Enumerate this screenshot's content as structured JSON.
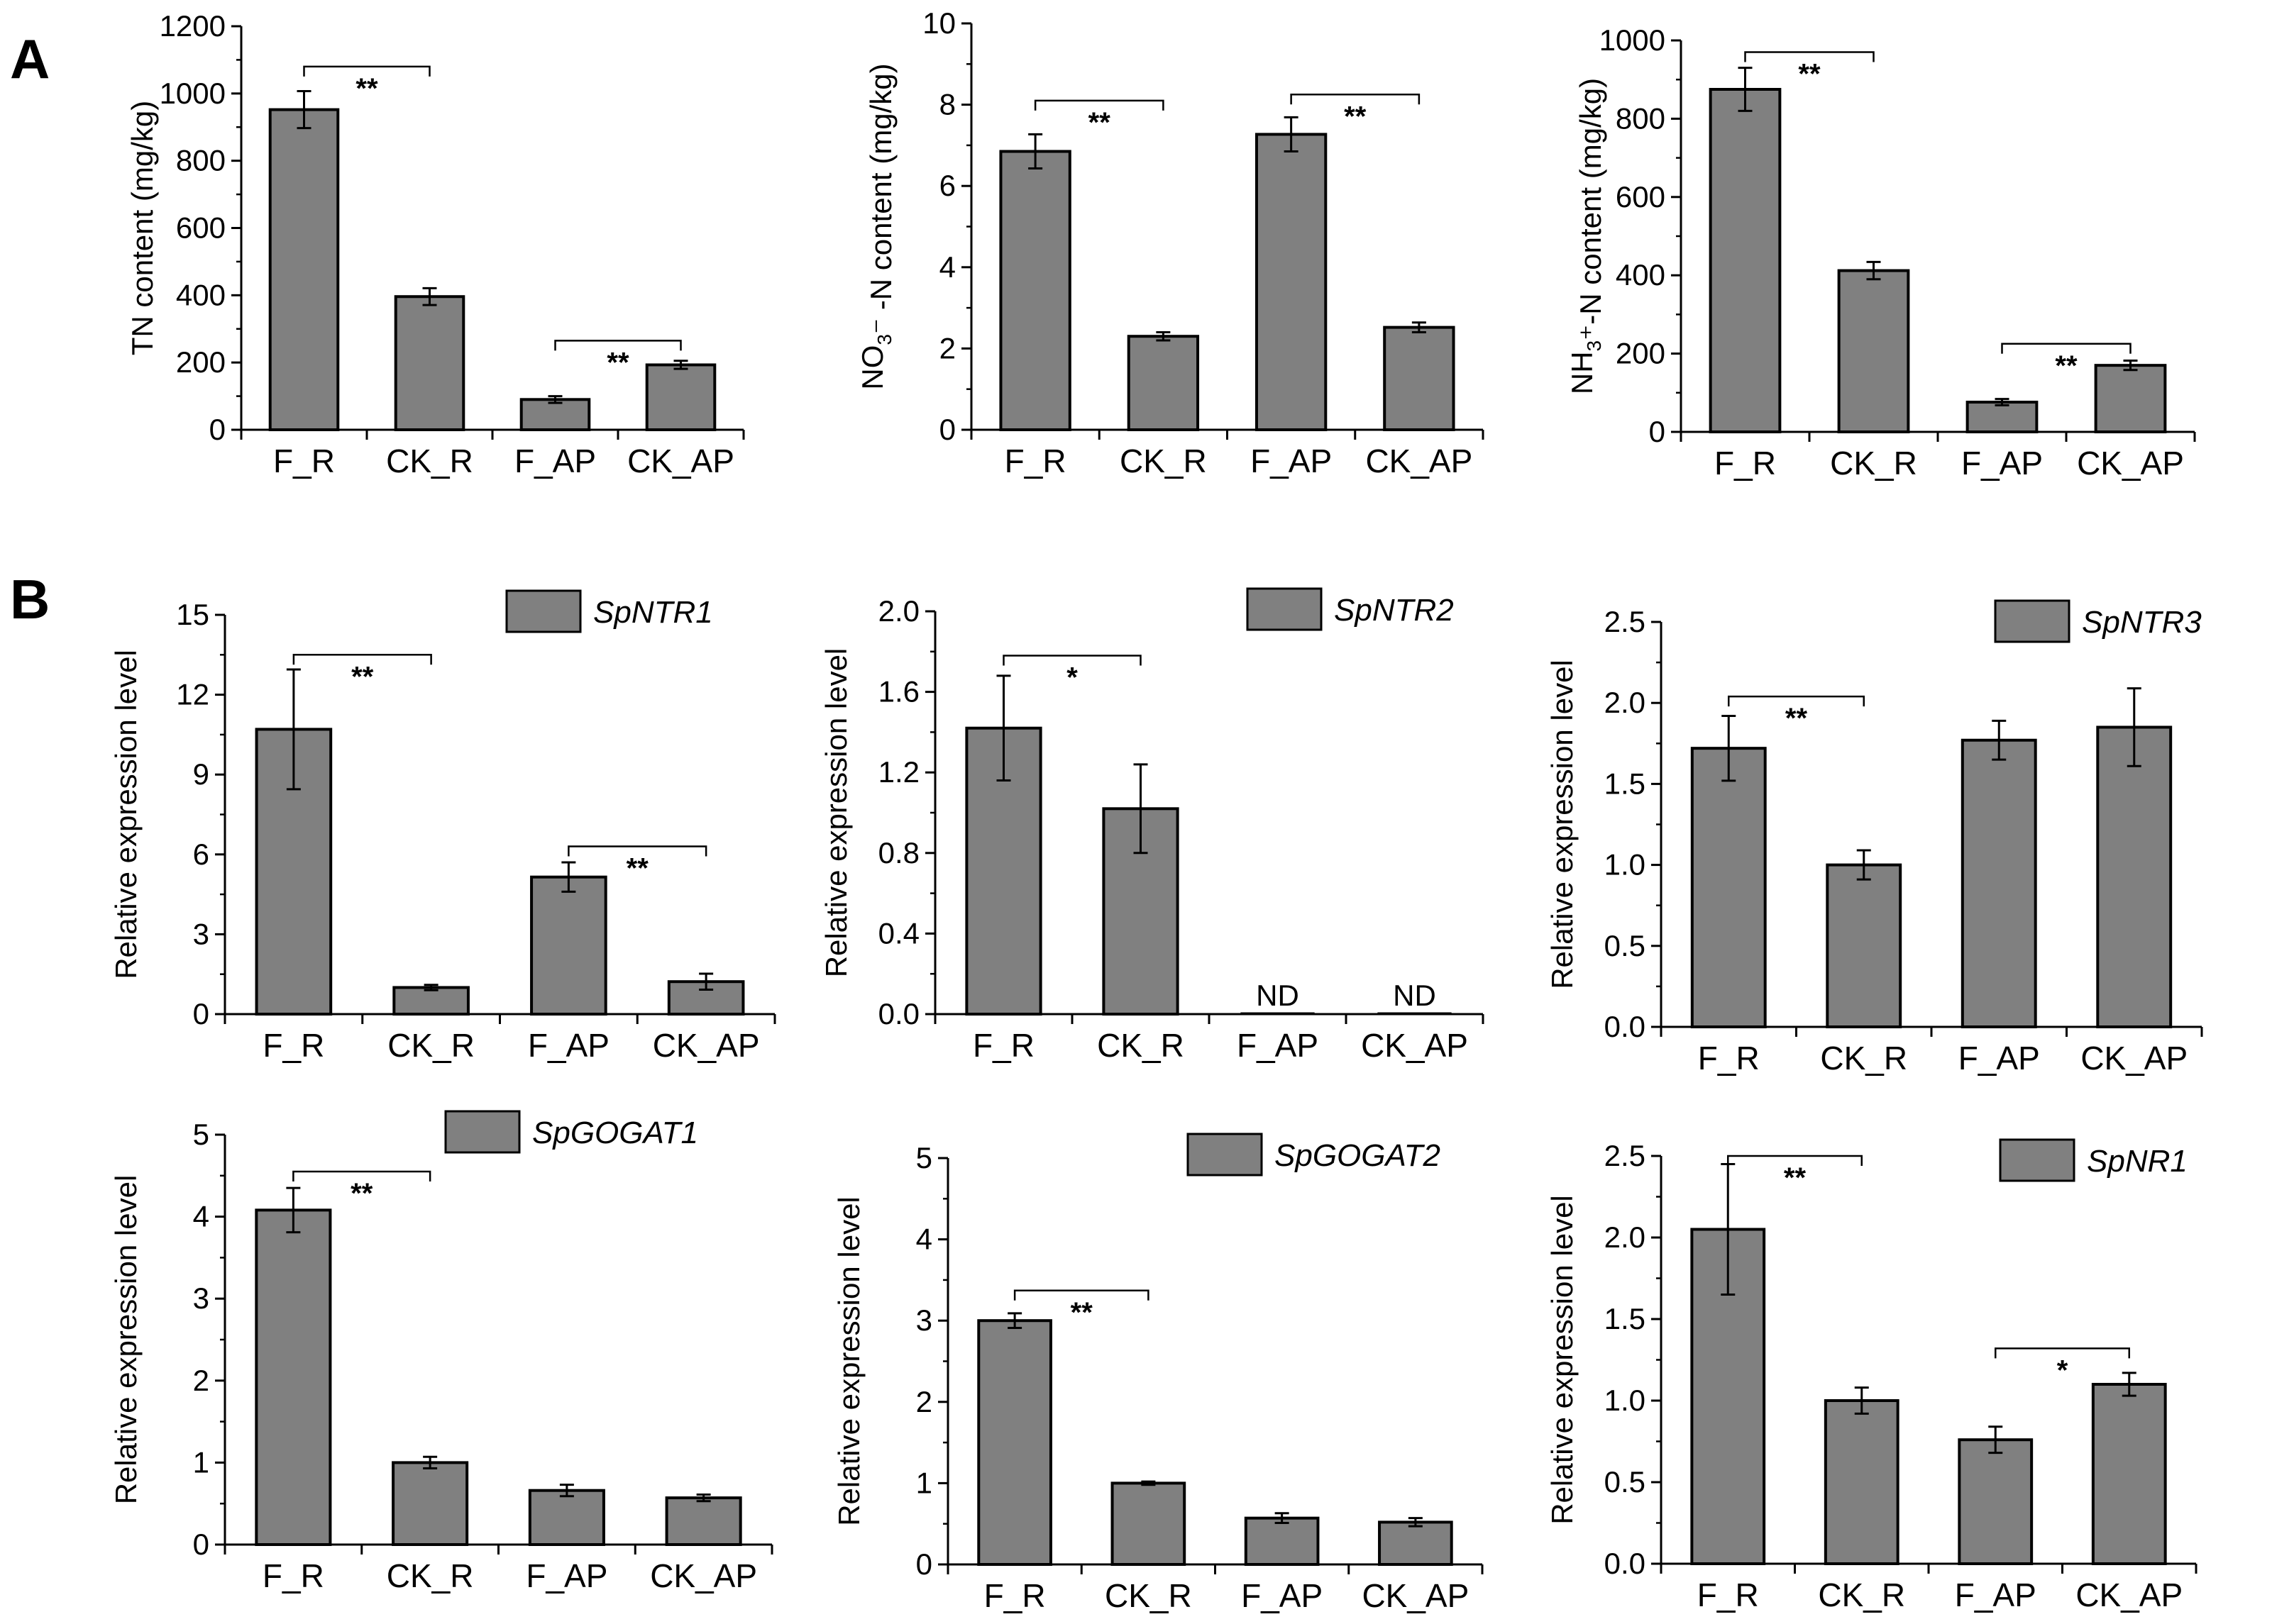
{
  "panel_labels": [
    "A",
    "B"
  ],
  "colors": {
    "bar": "#808080",
    "outline": "#000000"
  },
  "chart_data": [
    {
      "type": "bar",
      "panel": "A",
      "title": "",
      "ylabel": {
        "parts": [
          {
            "t": "TN content (mg/kg)"
          }
        ]
      },
      "categories": [
        "F_R",
        "CK_R",
        "F_AP",
        "CK_AP"
      ],
      "values": [
        952,
        396,
        90,
        193
      ],
      "errors": [
        55,
        25,
        10,
        12
      ],
      "ylim": [
        0,
        1200
      ],
      "yticks": [
        "0",
        "200",
        "400",
        "600",
        "800",
        "1000",
        "1200"
      ],
      "legend": "",
      "significance": [
        {
          "from": 0,
          "to": 1,
          "label": "**",
          "y": 1080
        },
        {
          "from": 2,
          "to": 3,
          "label": "**",
          "y": 265
        }
      ],
      "nd": []
    },
    {
      "type": "bar",
      "panel": "A",
      "title": "",
      "ylabel": {
        "parts": [
          {
            "t": "NO"
          },
          {
            "t": "3",
            "sub": true
          },
          {
            "t": "⁻ -N content (mg/kg)"
          }
        ]
      },
      "categories": [
        "F_R",
        "CK_R",
        "F_AP",
        "CK_AP"
      ],
      "values": [
        6.85,
        2.3,
        7.27,
        2.52
      ],
      "errors": [
        0.42,
        0.1,
        0.42,
        0.12
      ],
      "ylim": [
        0,
        10
      ],
      "yticks": [
        "0",
        "2",
        "4",
        "6",
        "8",
        "10"
      ],
      "legend": "",
      "significance": [
        {
          "from": 0,
          "to": 1,
          "label": "**",
          "y": 8.1
        },
        {
          "from": 2,
          "to": 3,
          "label": "**",
          "y": 8.25
        }
      ],
      "nd": []
    },
    {
      "type": "bar",
      "panel": "A",
      "title": "",
      "ylabel": {
        "parts": [
          {
            "t": "NH"
          },
          {
            "t": "3",
            "sub": true
          },
          {
            "t": "⁺-N content (mg/kg)"
          }
        ]
      },
      "categories": [
        "F_R",
        "CK_R",
        "F_AP",
        "CK_AP"
      ],
      "values": [
        875,
        412,
        76,
        170
      ],
      "errors": [
        55,
        22,
        8,
        12
      ],
      "ylim": [
        0,
        1000
      ],
      "yticks": [
        "0",
        "200",
        "400",
        "600",
        "800",
        "1000"
      ],
      "legend": "",
      "significance": [
        {
          "from": 0,
          "to": 1,
          "label": "**",
          "y": 970
        },
        {
          "from": 2,
          "to": 3,
          "label": "**",
          "y": 225
        }
      ],
      "nd": []
    },
    {
      "type": "bar",
      "panel": "B",
      "title": "",
      "ylabel": {
        "parts": [
          {
            "t": "Relative expression level"
          }
        ]
      },
      "categories": [
        "F_R",
        "CK_R",
        "F_AP",
        "CK_AP"
      ],
      "values": [
        10.7,
        1.0,
        5.15,
        1.22
      ],
      "errors": [
        2.25,
        0.1,
        0.55,
        0.3
      ],
      "ylim": [
        0,
        15
      ],
      "yticks": [
        "0",
        "3",
        "6",
        "9",
        "12",
        "15"
      ],
      "legend": "SpNTR1",
      "significance": [
        {
          "from": 0,
          "to": 1,
          "label": "**",
          "y": 13.5
        },
        {
          "from": 2,
          "to": 3,
          "label": "**",
          "y": 6.3
        }
      ],
      "nd": []
    },
    {
      "type": "bar",
      "panel": "B",
      "title": "",
      "ylabel": {
        "parts": [
          {
            "t": "Relative expression level"
          }
        ]
      },
      "categories": [
        "F_R",
        "CK_R",
        "F_AP",
        "CK_AP"
      ],
      "values": [
        1.42,
        1.02,
        0,
        0
      ],
      "errors": [
        0.26,
        0.22,
        0,
        0
      ],
      "ylim": [
        0,
        2.0
      ],
      "yticks": [
        "0.0",
        "0.4",
        "0.8",
        "1.2",
        "1.6",
        "2.0"
      ],
      "legend": "SpNTR2",
      "significance": [
        {
          "from": 0,
          "to": 1,
          "label": "*",
          "y": 1.78
        }
      ],
      "nd": [
        {
          "index": 2,
          "label": "ND"
        },
        {
          "index": 3,
          "label": "ND"
        }
      ]
    },
    {
      "type": "bar",
      "panel": "B",
      "title": "",
      "ylabel": {
        "parts": [
          {
            "t": "Relative expression level"
          }
        ]
      },
      "categories": [
        "F_R",
        "CK_R",
        "F_AP",
        "CK_AP"
      ],
      "values": [
        1.72,
        1.0,
        1.77,
        1.85
      ],
      "errors": [
        0.2,
        0.09,
        0.12,
        0.24
      ],
      "ylim": [
        0,
        2.5
      ],
      "yticks": [
        "0.0",
        "0.5",
        "1.0",
        "1.5",
        "2.0",
        "2.5"
      ],
      "legend": "SpNTR3",
      "significance": [
        {
          "from": 0,
          "to": 1,
          "label": "**",
          "y": 2.04
        }
      ],
      "nd": []
    },
    {
      "type": "bar",
      "panel": "B",
      "title": "",
      "ylabel": {
        "parts": [
          {
            "t": "Relative expression level"
          }
        ]
      },
      "categories": [
        "F_R",
        "CK_R",
        "F_AP",
        "CK_AP"
      ],
      "values": [
        4.08,
        1.0,
        0.66,
        0.57
      ],
      "errors": [
        0.27,
        0.07,
        0.07,
        0.04
      ],
      "ylim": [
        0,
        5
      ],
      "yticks": [
        "0",
        "1",
        "2",
        "3",
        "4",
        "5"
      ],
      "legend": "SpGOGAT1",
      "significance": [
        {
          "from": 0,
          "to": 1,
          "label": "**",
          "y": 4.55
        }
      ],
      "nd": []
    },
    {
      "type": "bar",
      "panel": "B",
      "title": "",
      "ylabel": {
        "parts": [
          {
            "t": "Relative expression level"
          }
        ]
      },
      "categories": [
        "F_R",
        "CK_R",
        "F_AP",
        "CK_AP"
      ],
      "values": [
        3.0,
        1.0,
        0.57,
        0.52
      ],
      "errors": [
        0.09,
        0.02,
        0.06,
        0.05
      ],
      "ylim": [
        0,
        5
      ],
      "yticks": [
        "0",
        "1",
        "2",
        "3",
        "4",
        "5"
      ],
      "legend": "SpGOGAT2",
      "significance": [
        {
          "from": 0,
          "to": 1,
          "label": "**",
          "y": 3.37
        }
      ],
      "nd": []
    },
    {
      "type": "bar",
      "panel": "B",
      "title": "",
      "ylabel": {
        "parts": [
          {
            "t": "Relative expression level"
          }
        ]
      },
      "categories": [
        "F_R",
        "CK_R",
        "F_AP",
        "CK_AP"
      ],
      "values": [
        2.05,
        1.0,
        0.76,
        1.1
      ],
      "errors": [
        0.4,
        0.08,
        0.08,
        0.07
      ],
      "ylim": [
        0,
        2.5
      ],
      "yticks": [
        "0.0",
        "0.5",
        "1.0",
        "1.5",
        "2.0",
        "2.5"
      ],
      "legend": "SpNR1",
      "significance": [
        {
          "from": 0,
          "to": 1,
          "label": "**",
          "y": 2.5
        },
        {
          "from": 2,
          "to": 3,
          "label": "*",
          "y": 1.32
        }
      ],
      "nd": []
    }
  ]
}
